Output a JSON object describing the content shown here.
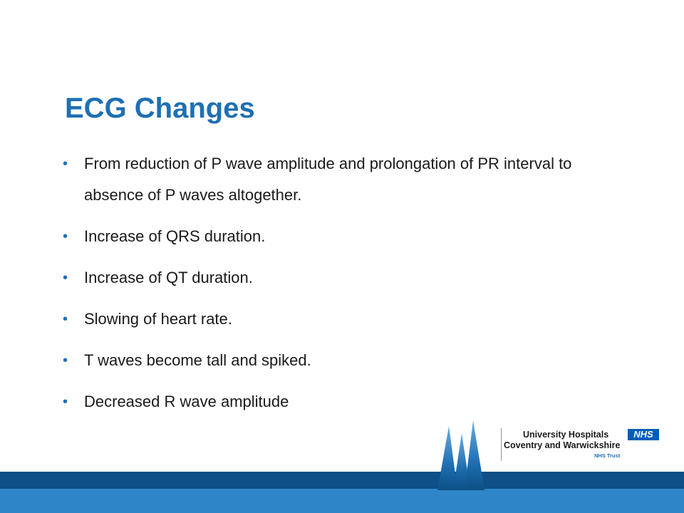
{
  "slide": {
    "title": "ECG Changes",
    "bullets": [
      "From reduction of P wave amplitude and prolongation of PR interval to absence of P waves altogether.",
      "Increase of QRS duration.",
      "Increase of QT duration.",
      "Slowing of heart rate.",
      "T waves become tall and spiked.",
      "Decreased R wave amplitude"
    ],
    "bullet_glyph": "•"
  },
  "logo": {
    "line1": "University Hospitals",
    "line2": "Coventry and Warwickshire",
    "line3": "NHS Trust",
    "badge": "NHS"
  },
  "colors": {
    "title": "#1f6fb2",
    "band_dark": "#0d4f86",
    "band_light": "#2e86c8",
    "nhs_blue": "#005eb8"
  }
}
